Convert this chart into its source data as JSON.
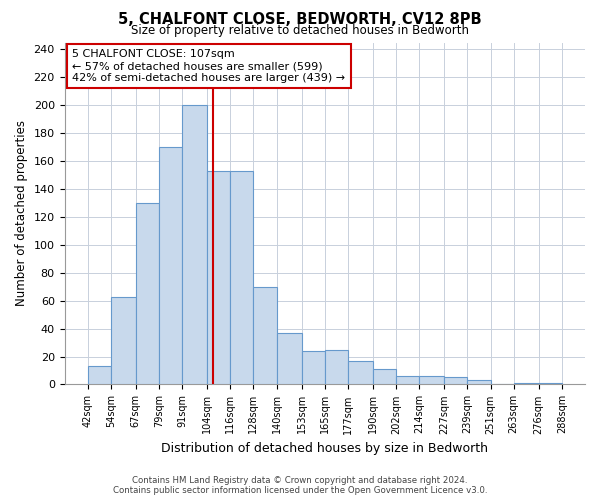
{
  "title": "5, CHALFONT CLOSE, BEDWORTH, CV12 8PB",
  "subtitle": "Size of property relative to detached houses in Bedworth",
  "xlabel": "Distribution of detached houses by size in Bedworth",
  "ylabel": "Number of detached properties",
  "bar_left_edges": [
    42,
    54,
    67,
    79,
    91,
    104,
    116,
    128,
    140,
    153,
    165,
    177,
    190,
    202,
    214,
    227,
    239,
    251,
    263,
    276
  ],
  "bar_heights": [
    13,
    63,
    130,
    170,
    200,
    153,
    153,
    70,
    37,
    24,
    25,
    17,
    11,
    6,
    6,
    5,
    3,
    0,
    1,
    1
  ],
  "bar_widths": [
    12,
    13,
    12,
    12,
    13,
    12,
    12,
    12,
    13,
    12,
    12,
    13,
    12,
    12,
    13,
    12,
    12,
    12,
    13,
    12
  ],
  "bar_color": "#c8d9ec",
  "bar_edge_color": "#6699cc",
  "property_value": 107,
  "vline_color": "#cc0000",
  "xlim_left": 30,
  "xlim_right": 300,
  "ylim_top": 245,
  "yticks": [
    0,
    20,
    40,
    60,
    80,
    100,
    120,
    140,
    160,
    180,
    200,
    220,
    240
  ],
  "xtick_labels": [
    "42sqm",
    "54sqm",
    "67sqm",
    "79sqm",
    "91sqm",
    "104sqm",
    "116sqm",
    "128sqm",
    "140sqm",
    "153sqm",
    "165sqm",
    "177sqm",
    "190sqm",
    "202sqm",
    "214sqm",
    "227sqm",
    "239sqm",
    "251sqm",
    "263sqm",
    "276sqm",
    "288sqm"
  ],
  "xtick_positions": [
    42,
    54,
    67,
    79,
    91,
    104,
    116,
    128,
    140,
    153,
    165,
    177,
    190,
    202,
    214,
    227,
    239,
    251,
    263,
    276,
    288
  ],
  "annotation_title": "5 CHALFONT CLOSE: 107sqm",
  "annotation_line1": "← 57% of detached houses are smaller (599)",
  "annotation_line2": "42% of semi-detached houses are larger (439) →",
  "annotation_box_color": "#ffffff",
  "annotation_box_edge": "#cc0000",
  "footer_line1": "Contains HM Land Registry data © Crown copyright and database right 2024.",
  "footer_line2": "Contains public sector information licensed under the Open Government Licence v3.0.",
  "grid_color": "#c8d0dc",
  "background_color": "#ffffff"
}
